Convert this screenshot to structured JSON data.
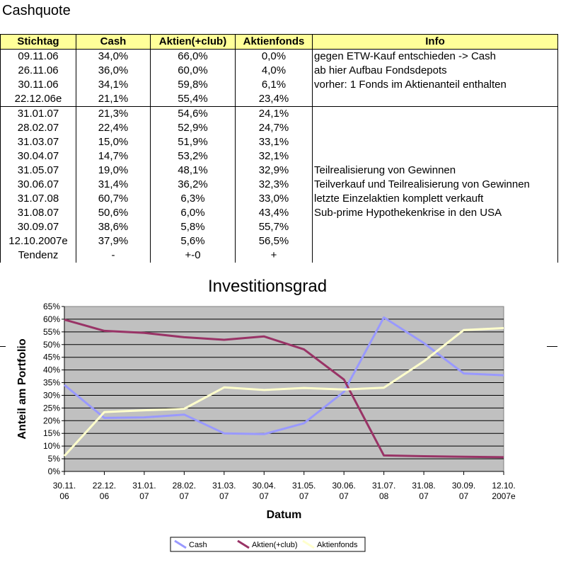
{
  "sheet_title": "Cashquote",
  "table": {
    "headers": [
      "Stichtag",
      "Cash",
      "Aktien(+club)",
      "Aktienfonds",
      "Info"
    ],
    "rows": [
      [
        "09.11.06",
        "34,0%",
        "66,0%",
        "0,0%",
        "gegen ETW-Kauf entschieden -> Cash"
      ],
      [
        "26.11.06",
        "36,0%",
        "60,0%",
        "4,0%",
        "ab hier Aufbau Fondsdepots"
      ],
      [
        "30.11.06",
        "34,1%",
        "59,8%",
        "6,1%",
        "vorher: 1 Fonds im Aktienanteil enthalten"
      ],
      [
        "22.12.06e",
        "21,1%",
        "55,4%",
        "23,4%",
        ""
      ],
      [
        "31.01.07",
        "21,3%",
        "54,6%",
        "24,1%",
        ""
      ],
      [
        "28.02.07",
        "22,4%",
        "52,9%",
        "24,7%",
        ""
      ],
      [
        "31.03.07",
        "15,0%",
        "51,9%",
        "33,1%",
        ""
      ],
      [
        "30.04.07",
        "14,7%",
        "53,2%",
        "32,1%",
        ""
      ],
      [
        "31.05.07",
        "19,0%",
        "48,1%",
        "32,9%",
        "Teilrealisierung von Gewinnen"
      ],
      [
        "30.06.07",
        "31,4%",
        "36,2%",
        "32,3%",
        "Teilverkauf und Teilrealisierung von Gewinnen"
      ],
      [
        "31.07.08",
        "60,7%",
        "6,3%",
        "33,0%",
        "letzte Einzelaktien komplett verkauft"
      ],
      [
        "31.08.07",
        "50,6%",
        "6,0%",
        "43,4%",
        "Sub-prime Hypothekenkrise in den USA"
      ],
      [
        "30.09.07",
        "38,6%",
        "5,8%",
        "55,7%",
        ""
      ],
      [
        "12.10.2007e",
        "37,9%",
        "5,6%",
        "56,5%",
        ""
      ],
      [
        "Tendenz",
        "-",
        "+-0",
        "+",
        ""
      ]
    ]
  },
  "chart_data": {
    "type": "line",
    "title": "Investitionsgrad",
    "xlabel": "Datum",
    "ylabel": "Anteil am Portfolio",
    "x": [
      "30.11.\n06",
      "22.12.\n06",
      "31.01.\n07",
      "28.02.\n07",
      "31.03.\n07",
      "30.04.\n07",
      "31.05.\n07",
      "30.06.\n07",
      "31.07.\n08",
      "31.08.\n07",
      "30.09.\n07",
      "12.10.\n2007e"
    ],
    "ylim": [
      0,
      65
    ],
    "yticks": [
      "0%",
      "5%",
      "10%",
      "15%",
      "20%",
      "25%",
      "30%",
      "35%",
      "40%",
      "45%",
      "50%",
      "55%",
      "60%",
      "65%"
    ],
    "grid": true,
    "legend": "bottom",
    "series": [
      {
        "name": "Cash",
        "color": "#9999ff",
        "values": [
          34.1,
          21.1,
          21.3,
          22.4,
          15.0,
          14.7,
          19.0,
          31.4,
          60.7,
          50.6,
          38.6,
          37.9
        ]
      },
      {
        "name": "Aktien(+club)",
        "color": "#993366",
        "values": [
          59.8,
          55.4,
          54.6,
          52.9,
          51.9,
          53.2,
          48.1,
          36.2,
          6.3,
          6.0,
          5.8,
          5.6
        ]
      },
      {
        "name": "Aktienfonds",
        "color": "#ffffcc",
        "values": [
          6.1,
          23.4,
          24.1,
          24.7,
          33.1,
          32.1,
          32.9,
          32.3,
          33.0,
          43.4,
          55.7,
          56.5
        ]
      }
    ]
  }
}
